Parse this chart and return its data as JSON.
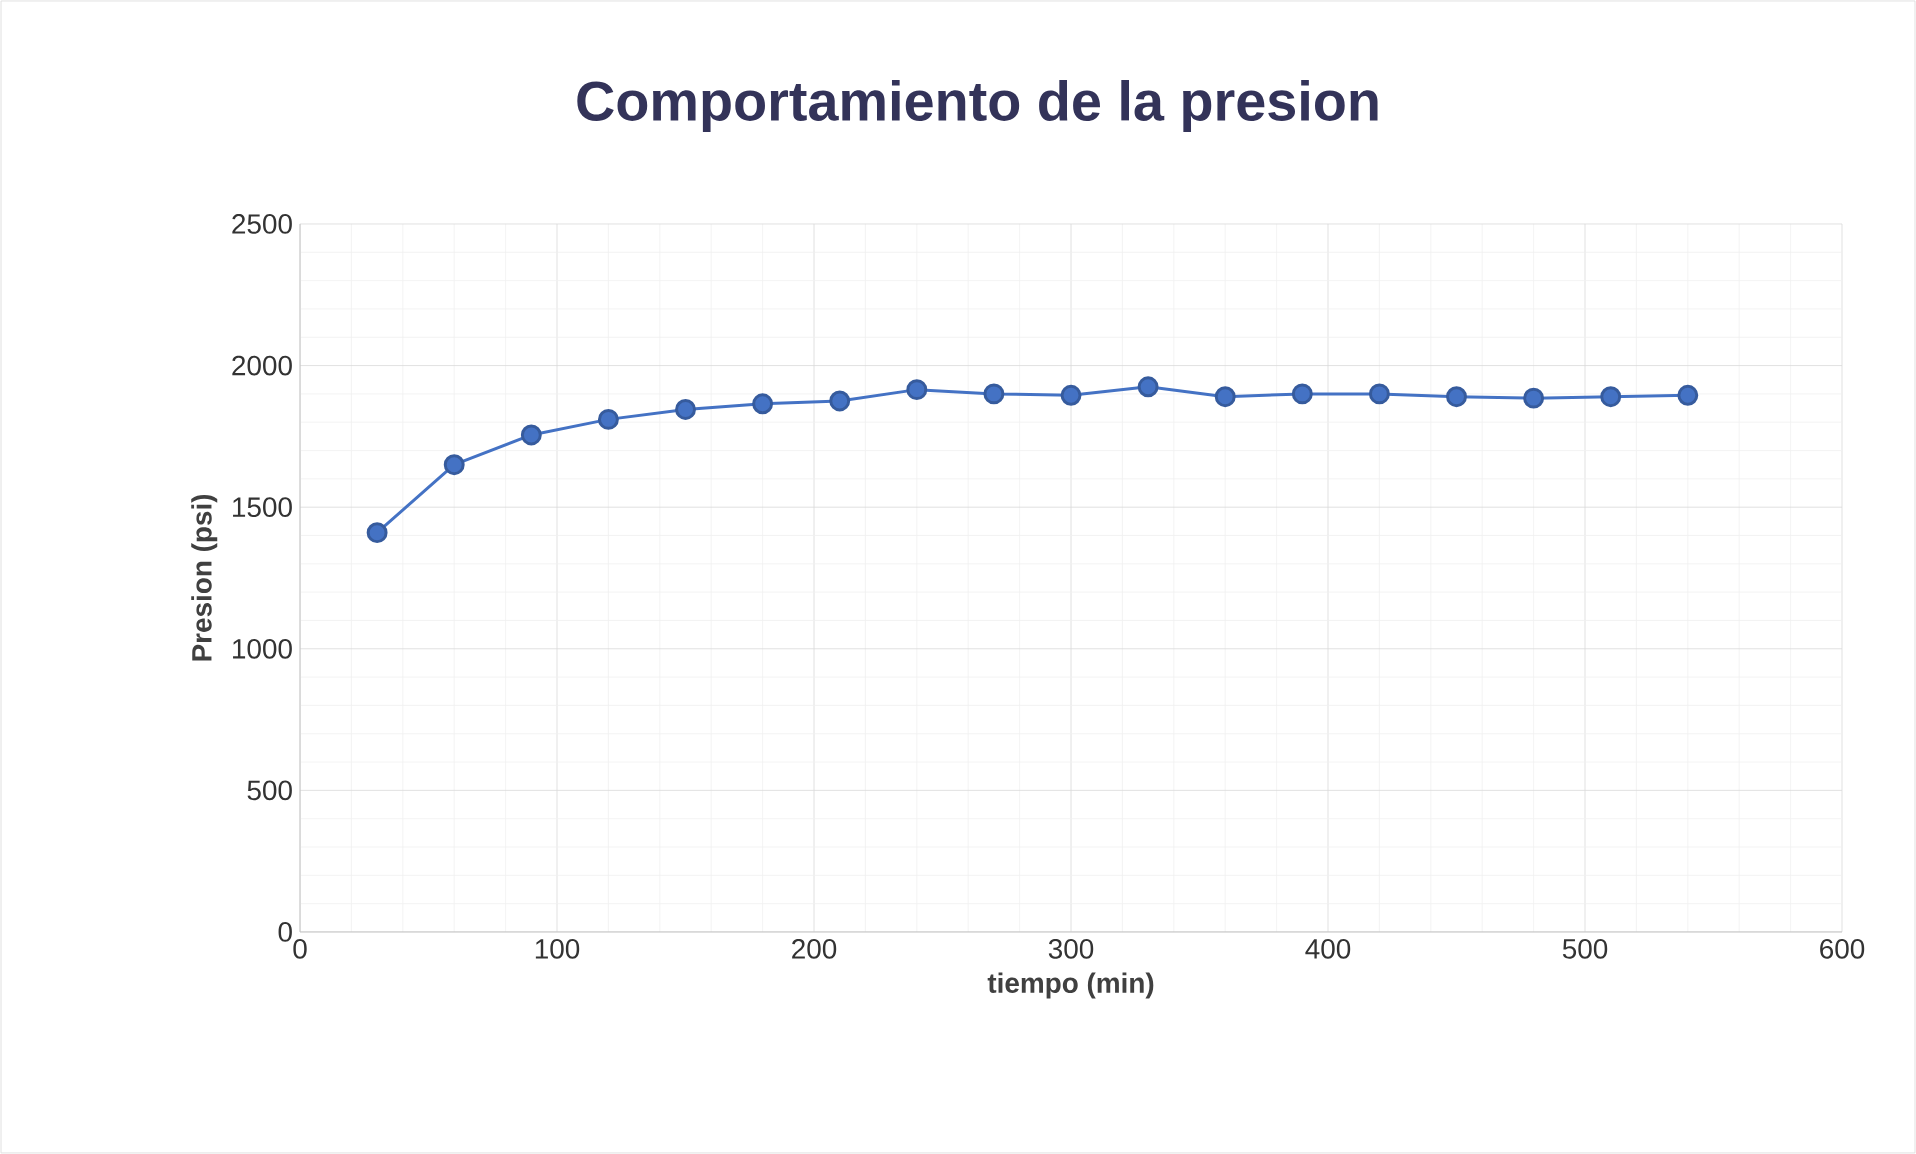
{
  "chart_data": {
    "type": "line",
    "title": "Comportamiento de la presion",
    "xlabel": "tiempo (min)",
    "ylabel": "Presion (psi)",
    "x": [
      30,
      60,
      90,
      120,
      150,
      180,
      210,
      240,
      270,
      300,
      330,
      360,
      390,
      420,
      450,
      480,
      510,
      540
    ],
    "series": [
      {
        "color": "#4472c4",
        "values": [
          1410,
          1650,
          1755,
          1810,
          1845,
          1865,
          1875,
          1915,
          1900,
          1895,
          1925,
          1890,
          1900,
          1900,
          1890,
          1885,
          1890,
          1895
        ]
      }
    ],
    "xlim": [
      0,
      600
    ],
    "xticks": [
      0,
      100,
      200,
      300,
      400,
      500,
      600
    ],
    "ylim": [
      0,
      2500
    ],
    "yticks": [
      0,
      500,
      1000,
      1500,
      2000,
      2500
    ],
    "grid": true,
    "marker": "circle",
    "line_style": "solid"
  }
}
